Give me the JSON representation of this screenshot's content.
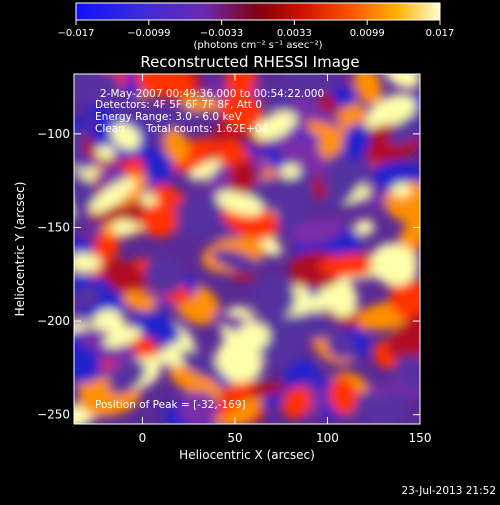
{
  "colorbar": {
    "tick_labels": [
      "−0.017",
      "−0.0099",
      "−0.0033",
      "0.0033",
      "0.0099",
      "0.017"
    ],
    "units_label": "(photons cm⁻² s⁻¹ asec⁻²)",
    "range": [
      -0.017,
      0.017
    ]
  },
  "chart_data": {
    "type": "heatmap",
    "title": "Reconstructed RHESSI Image",
    "xlabel": "Heliocentric X (arcsec)",
    "ylabel": "Heliocentric Y (arcsec)",
    "xlim": [
      -37,
      150
    ],
    "ylim": [
      -255,
      -68
    ],
    "x_ticks": [
      0,
      50,
      100,
      150
    ],
    "x_tick_labels": [
      "0",
      "50",
      "100",
      "150"
    ],
    "y_ticks": [
      -100,
      -150,
      -200,
      -250
    ],
    "y_tick_labels": [
      "−100",
      "−150",
      "−200",
      "−250"
    ],
    "peak": {
      "x": -32,
      "y": -169
    },
    "color_scale": [
      "#2222cc",
      "#5533a0",
      "#7a2ea8",
      "#b01020",
      "#ff3000",
      "#ff9000",
      "#ffffaa"
    ],
    "annotations": {
      "time_range": "2-May-2007 00:49:36.000 to 00:54:22.000",
      "detectors": "Detectors: 4F 5F 6F 7F 8F, Att 0",
      "energy": "Energy Range: 3.0 - 6.0 keV",
      "clean_label": "Clean",
      "total_counts": "Total counts: 1.62E+04",
      "peak_text": "Position of Peak = [-32,-169]"
    }
  },
  "footer": {
    "timestamp": "23-Jul-2013 21:52"
  }
}
